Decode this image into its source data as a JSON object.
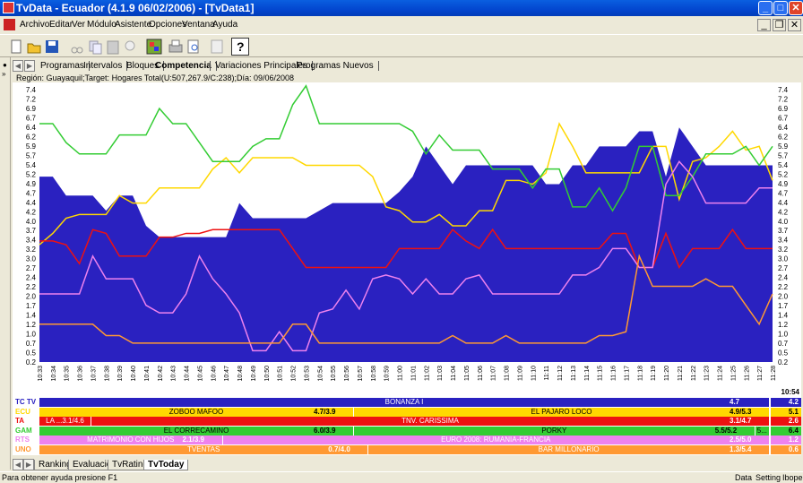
{
  "window": {
    "title": "TvData - Ecuador (4.1.9 06/02/2006) - [TvData1]"
  },
  "menu": [
    "Archivo",
    "Editar",
    "Ver",
    "Módulo",
    "Asistente",
    "Opciones",
    "Ventana",
    "Ayuda"
  ],
  "tabs": [
    "Programas",
    "Intervalos",
    "Bloques",
    "Competencia",
    "Variaciones Principales",
    "Programas Nuevos"
  ],
  "active_tab": "Competencia",
  "region_line": "Región: Guayaquil;Target: Hogares Total(U:507,267.9/C:238);Día: 09/06/2008",
  "colors": {
    "tc": "#2a21c0",
    "ecu": "#ffd800",
    "ta": "#ee1111",
    "gam": "#33cc33",
    "rts": "#ee82ee",
    "uno": "#ff9933"
  },
  "chart_data": {
    "type": "line",
    "ylim": [
      0.2,
      7.4
    ],
    "y_ticks": [
      "7.4",
      "7.2",
      "6.9",
      "6.7",
      "6.4",
      "6.2",
      "5.9",
      "5.7",
      "5.4",
      "5.2",
      "4.9",
      "4.7",
      "4.4",
      "4.2",
      "4.0",
      "3.7",
      "3.4",
      "3.2",
      "3.0",
      "2.7",
      "2.4",
      "2.2",
      "2.0",
      "1.7",
      "1.4",
      "1.2",
      "1.0",
      "0.7",
      "0.5",
      "0.2"
    ],
    "x": [
      "10:33",
      "10:34",
      "10:35",
      "10:36",
      "10:37",
      "10:38",
      "10:39",
      "10:40",
      "10:41",
      "10:42",
      "10:43",
      "10:44",
      "10:45",
      "10:46",
      "10:47",
      "10:48",
      "10:49",
      "10:50",
      "10:51",
      "10:52",
      "10:53",
      "10:54",
      "10:55",
      "10:56",
      "10:57",
      "10:58",
      "10:59",
      "11:00",
      "11:01",
      "11:02",
      "11:03",
      "11:04",
      "11:05",
      "11:06",
      "11:07",
      "11:08",
      "11:09",
      "11:10",
      "11:11",
      "11:12",
      "11:13",
      "11:14",
      "11:15",
      "11:16",
      "11:17",
      "11:18",
      "11:19",
      "11:20",
      "11:21",
      "11:22",
      "11:23",
      "11:24",
      "11:25",
      "11:26",
      "11:27",
      "11:28"
    ],
    "series": [
      {
        "name": "TC TV",
        "values": [
          5.1,
          5.1,
          4.6,
          4.6,
          4.6,
          4.2,
          4.6,
          4.6,
          3.8,
          3.5,
          3.5,
          3.5,
          3.5,
          3.5,
          3.5,
          4.4,
          4.0,
          4.0,
          4.0,
          4.0,
          4.0,
          4.2,
          4.4,
          4.4,
          4.4,
          4.4,
          4.4,
          4.7,
          5.1,
          5.9,
          5.4,
          4.9,
          5.4,
          5.4,
          5.4,
          5.4,
          5.4,
          5.4,
          4.9,
          4.9,
          5.4,
          5.4,
          5.9,
          5.9,
          5.9,
          6.3,
          6.3,
          5.1,
          6.4,
          5.9,
          5.4,
          5.4,
          5.4,
          5.4,
          5.4,
          5.4
        ]
      },
      {
        "name": "ECU",
        "values": [
          3.3,
          3.6,
          4.0,
          4.1,
          4.1,
          4.1,
          4.6,
          4.4,
          4.4,
          4.8,
          4.8,
          4.8,
          4.8,
          5.3,
          5.6,
          5.2,
          5.6,
          5.6,
          5.6,
          5.6,
          5.4,
          5.4,
          5.4,
          5.4,
          5.4,
          5.1,
          4.3,
          4.2,
          3.9,
          3.9,
          4.1,
          3.8,
          3.8,
          4.2,
          4.2,
          5.0,
          5.0,
          4.9,
          5.2,
          6.5,
          5.9,
          5.2,
          5.2,
          5.2,
          5.2,
          5.2,
          5.9,
          5.9,
          4.5,
          5.5,
          5.6,
          5.9,
          6.3,
          5.8,
          5.9,
          5.0
        ]
      },
      {
        "name": "TA",
        "values": [
          3.4,
          3.4,
          3.3,
          2.8,
          3.7,
          3.6,
          3.0,
          3.0,
          3.0,
          3.5,
          3.5,
          3.6,
          3.6,
          3.7,
          3.7,
          3.7,
          3.7,
          3.7,
          3.7,
          3.2,
          2.7,
          2.7,
          2.7,
          2.7,
          2.7,
          2.7,
          2.7,
          3.2,
          3.2,
          3.2,
          3.2,
          3.7,
          3.4,
          3.2,
          3.7,
          3.2,
          3.2,
          3.2,
          3.2,
          3.2,
          3.2,
          3.2,
          3.2,
          3.6,
          3.6,
          2.7,
          2.7,
          3.6,
          2.7,
          3.2,
          3.2,
          3.2,
          3.7,
          3.2,
          3.2,
          3.2
        ]
      },
      {
        "name": "GAM",
        "values": [
          6.5,
          6.5,
          6.0,
          5.7,
          5.7,
          5.7,
          6.2,
          6.2,
          6.2,
          6.9,
          6.5,
          6.5,
          6.0,
          5.5,
          5.5,
          5.5,
          5.9,
          6.1,
          6.1,
          7.0,
          7.5,
          6.5,
          6.5,
          6.5,
          6.5,
          6.5,
          6.5,
          6.5,
          6.3,
          5.7,
          6.2,
          5.8,
          5.8,
          5.8,
          5.3,
          5.3,
          5.3,
          4.8,
          5.3,
          5.3,
          4.3,
          4.3,
          4.8,
          4.2,
          4.8,
          5.9,
          5.9,
          4.6,
          4.6,
          5.1,
          5.7,
          5.7,
          5.7,
          5.9,
          5.4,
          5.9
        ]
      },
      {
        "name": "RTS",
        "values": [
          2.0,
          2.0,
          2.0,
          2.0,
          3.0,
          2.4,
          2.4,
          2.4,
          1.7,
          1.5,
          1.5,
          2.0,
          3.0,
          2.4,
          2.0,
          1.5,
          0.5,
          0.5,
          1.0,
          0.5,
          0.5,
          1.5,
          1.6,
          2.1,
          1.6,
          2.4,
          2.5,
          2.4,
          2.0,
          2.4,
          2.0,
          2.0,
          2.4,
          2.5,
          2.0,
          2.0,
          2.0,
          2.0,
          2.0,
          2.0,
          2.5,
          2.5,
          2.7,
          3.2,
          3.2,
          2.7,
          2.7,
          4.9,
          5.5,
          5.1,
          4.4,
          4.4,
          4.4,
          4.4,
          4.8,
          4.8
        ]
      },
      {
        "name": "UNO",
        "values": [
          1.2,
          1.2,
          1.2,
          1.2,
          1.2,
          0.9,
          0.9,
          0.7,
          0.7,
          0.7,
          0.7,
          0.7,
          0.7,
          0.7,
          0.7,
          0.7,
          0.7,
          0.7,
          0.7,
          1.2,
          1.2,
          0.7,
          0.7,
          0.7,
          0.7,
          0.7,
          0.7,
          0.7,
          0.7,
          0.7,
          0.7,
          0.9,
          0.7,
          0.7,
          0.7,
          0.9,
          0.7,
          0.7,
          0.7,
          0.7,
          0.7,
          0.7,
          0.9,
          0.9,
          1.0,
          3.0,
          2.2,
          2.2,
          2.2,
          2.2,
          2.4,
          2.2,
          2.2,
          1.7,
          1.2,
          2.0
        ]
      }
    ]
  },
  "end_time": "10:54",
  "bars": [
    {
      "label": "TC TV",
      "color": "#2a21c0",
      "text": "#ffffff",
      "val": "4.2",
      "segs": [
        {
          "t": "BONANZA I",
          "w": 1,
          "sv": "4.7"
        }
      ]
    },
    {
      "label": "ECU",
      "color": "#ffd800",
      "text": "#000000",
      "val": "5.1",
      "segs": [
        {
          "t": "ZOBOO MAFOO",
          "w": 0.43,
          "sv": "4.7/3.9"
        },
        {
          "t": "EL PAJARO LOCO",
          "w": 0.57,
          "sv": "4.9/5.3"
        }
      ]
    },
    {
      "label": "TA",
      "color": "#ee1111",
      "text": "#ffffff",
      "val": "2.6",
      "segs": [
        {
          "t": "LA ...3.1/4.6",
          "w": 0.07,
          "sv": ""
        },
        {
          "t": "TNV. CARISSIMA",
          "w": 0.93,
          "sv": "3.1/4.7"
        }
      ]
    },
    {
      "label": "GAM",
      "color": "#33cc33",
      "text": "#000000",
      "val": "6.4",
      "segs": [
        {
          "t": "EL CORRECAMINO",
          "w": 0.43,
          "sv": "6.0/3.9"
        },
        {
          "t": "PORKY",
          "w": 0.55,
          "sv": "5.5/5.2"
        },
        {
          "t": "5...",
          "w": 0.02,
          "sv": ""
        }
      ]
    },
    {
      "label": "RTS",
      "color": "#ee82ee",
      "text": "#ffffff",
      "val": "1.2",
      "segs": [
        {
          "t": "MATRIMONIO CON HIJOS",
          "w": 0.25,
          "sv": "2.1/3.9"
        },
        {
          "t": "EURO 2008: RUMANIA-FRANCIA",
          "w": 0.75,
          "sv": "2.5/5.0"
        }
      ]
    },
    {
      "label": "UNO",
      "color": "#ff9933",
      "text": "#ffffff",
      "val": "0.6",
      "segs": [
        {
          "t": "TVENTAS",
          "w": 0.45,
          "sv": "0.7/4.0"
        },
        {
          "t": "BAR MILLONARIO",
          "w": 0.55,
          "sv": "1.3/5.4"
        }
      ]
    }
  ],
  "bottom_tabs": [
    "Ranking",
    "Evaluación",
    "TvRating",
    "TvToday"
  ],
  "active_bottom_tab": "TvToday",
  "status": {
    "left": "Para obtener ayuda presione F1",
    "items": [
      "Data",
      "Setting",
      "Ibope"
    ]
  }
}
